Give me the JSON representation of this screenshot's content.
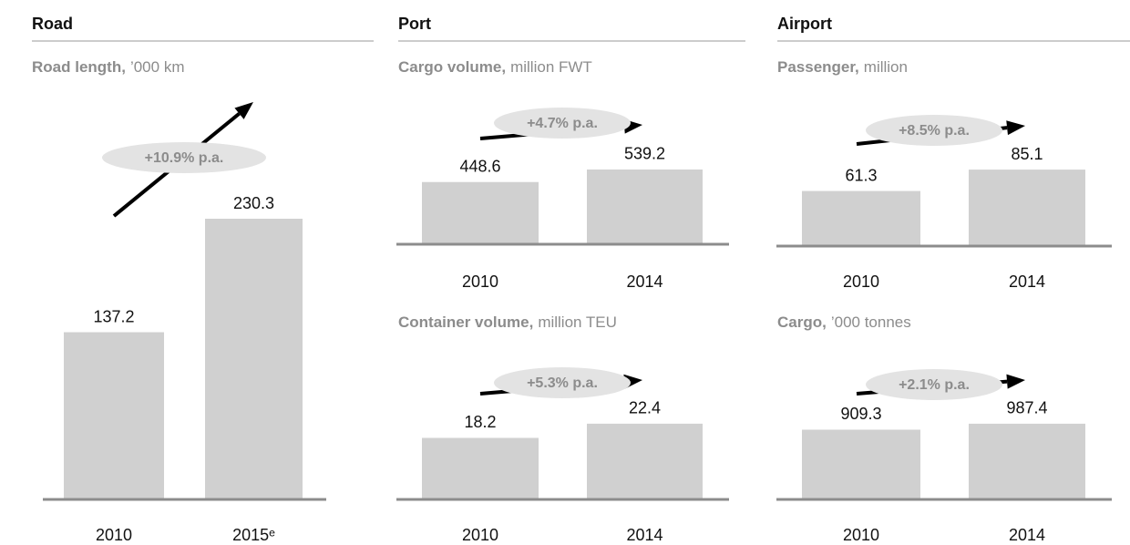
{
  "sections": [
    "Road",
    "Port",
    "Airport"
  ],
  "chart_data": [
    {
      "type": "bar",
      "title": "Road length,",
      "unit": "’000 km",
      "categories": [
        "2010",
        "2015ᵉ"
      ],
      "values": [
        137.2,
        230.3
      ],
      "annotation": "+10.9% p.a.",
      "color": "#d0d0d0",
      "ylim": [
        0,
        335
      ]
    },
    {
      "type": "bar",
      "title": "Cargo volume,",
      "unit": "million FWT",
      "categories": [
        "2010",
        "2014"
      ],
      "values": [
        448.6,
        539.2
      ],
      "annotation": "+4.7% p.a.",
      "color": "#d0d0d0",
      "ylim": [
        0,
        907
      ]
    },
    {
      "type": "bar",
      "title": "Container volume,",
      "unit": "million TEU",
      "categories": [
        "2010",
        "2014"
      ],
      "values": [
        18.2,
        22.4
      ],
      "annotation": "+5.3% p.a.",
      "color": "#d0d0d0",
      "ylim": [
        0,
        37.2
      ]
    },
    {
      "type": "bar",
      "title": "Passenger,",
      "unit": "million",
      "categories": [
        "2010",
        "2014"
      ],
      "values": [
        61.3,
        85.1
      ],
      "annotation": "+8.5% p.a.",
      "color": "#d0d0d0",
      "ylim": [
        0,
        140
      ]
    },
    {
      "type": "bar",
      "title": "Cargo,",
      "unit": "’000 tonnes",
      "categories": [
        "2010",
        "2014"
      ],
      "values": [
        909.3,
        987.4
      ],
      "annotation": "+2.1% p.a.",
      "color": "#d0d0d0",
      "ylim": [
        0,
        1640
      ]
    }
  ]
}
